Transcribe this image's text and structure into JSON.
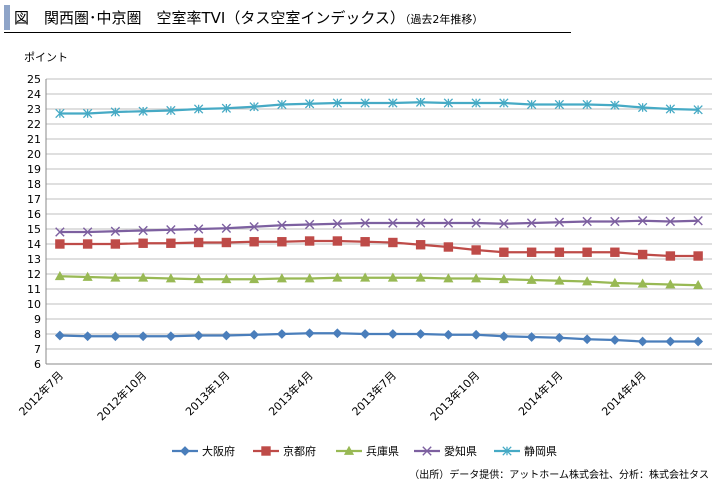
{
  "header": {
    "title": "図　関西圏･中京圏　空室率TVI（タス空室インデックス）",
    "note": "（過去2年推移）"
  },
  "source": "（出所）データ提供：アットホーム株式会社、分析：株式会社タス",
  "colors": {
    "大阪府": "#4A7EBB",
    "京都府": "#BE4B48",
    "兵庫県": "#98B954",
    "愛知県": "#7D60A0",
    "静岡県": "#46AAC5"
  },
  "chart_data": {
    "type": "line",
    "ylabel": "ポイント",
    "ylim": [
      6,
      25
    ],
    "yticks": [
      6,
      7,
      8,
      9,
      10,
      11,
      12,
      13,
      14,
      15,
      16,
      17,
      18,
      19,
      20,
      21,
      22,
      23,
      24,
      25
    ],
    "grid": true,
    "legend_position": "bottom",
    "x": [
      "2012年7月",
      "2012年8月",
      "2012年9月",
      "2012年10月",
      "2012年11月",
      "2012年12月",
      "2013年1月",
      "2013年2月",
      "2013年3月",
      "2013年4月",
      "2013年5月",
      "2013年6月",
      "2013年7月",
      "2013年8月",
      "2013年9月",
      "2013年10月",
      "2013年11月",
      "2013年12月",
      "2014年1月",
      "2014年2月",
      "2014年3月",
      "2014年4月",
      "2014年5月",
      "2014年6月"
    ],
    "x_tick_labels": [
      "2012年7月",
      "",
      "",
      "2012年10月",
      "",
      "",
      "2013年1月",
      "",
      "",
      "2013年4月",
      "",
      "",
      "2013年7月",
      "",
      "",
      "2013年10月",
      "",
      "",
      "2014年1月",
      "",
      "",
      "2014年4月",
      "",
      ""
    ],
    "series": [
      {
        "name": "大阪府",
        "marker": "diamond",
        "values": [
          7.9,
          7.85,
          7.85,
          7.85,
          7.85,
          7.9,
          7.9,
          7.95,
          8.0,
          8.05,
          8.05,
          8.0,
          8.0,
          8.0,
          7.95,
          7.95,
          7.85,
          7.8,
          7.75,
          7.65,
          7.6,
          7.5,
          7.5,
          7.5
        ]
      },
      {
        "name": "京都府",
        "marker": "square",
        "values": [
          14.0,
          14.0,
          14.0,
          14.05,
          14.05,
          14.1,
          14.1,
          14.15,
          14.15,
          14.2,
          14.2,
          14.15,
          14.1,
          13.95,
          13.8,
          13.6,
          13.45,
          13.45,
          13.45,
          13.45,
          13.45,
          13.3,
          13.2,
          13.2
        ]
      },
      {
        "name": "兵庫県",
        "marker": "triangle",
        "values": [
          11.85,
          11.8,
          11.75,
          11.75,
          11.7,
          11.65,
          11.65,
          11.65,
          11.7,
          11.7,
          11.75,
          11.75,
          11.75,
          11.75,
          11.7,
          11.7,
          11.65,
          11.6,
          11.55,
          11.5,
          11.4,
          11.35,
          11.3,
          11.25
        ]
      },
      {
        "name": "愛知県",
        "marker": "x",
        "values": [
          14.8,
          14.8,
          14.85,
          14.9,
          14.95,
          15.0,
          15.05,
          15.15,
          15.25,
          15.3,
          15.35,
          15.4,
          15.4,
          15.4,
          15.4,
          15.4,
          15.35,
          15.4,
          15.45,
          15.5,
          15.5,
          15.55,
          15.5,
          15.55
        ]
      },
      {
        "name": "静岡県",
        "marker": "asterisk",
        "values": [
          22.7,
          22.7,
          22.8,
          22.85,
          22.9,
          23.0,
          23.05,
          23.15,
          23.3,
          23.35,
          23.4,
          23.4,
          23.4,
          23.45,
          23.4,
          23.4,
          23.4,
          23.3,
          23.3,
          23.3,
          23.25,
          23.1,
          23.0,
          22.95
        ]
      }
    ]
  }
}
